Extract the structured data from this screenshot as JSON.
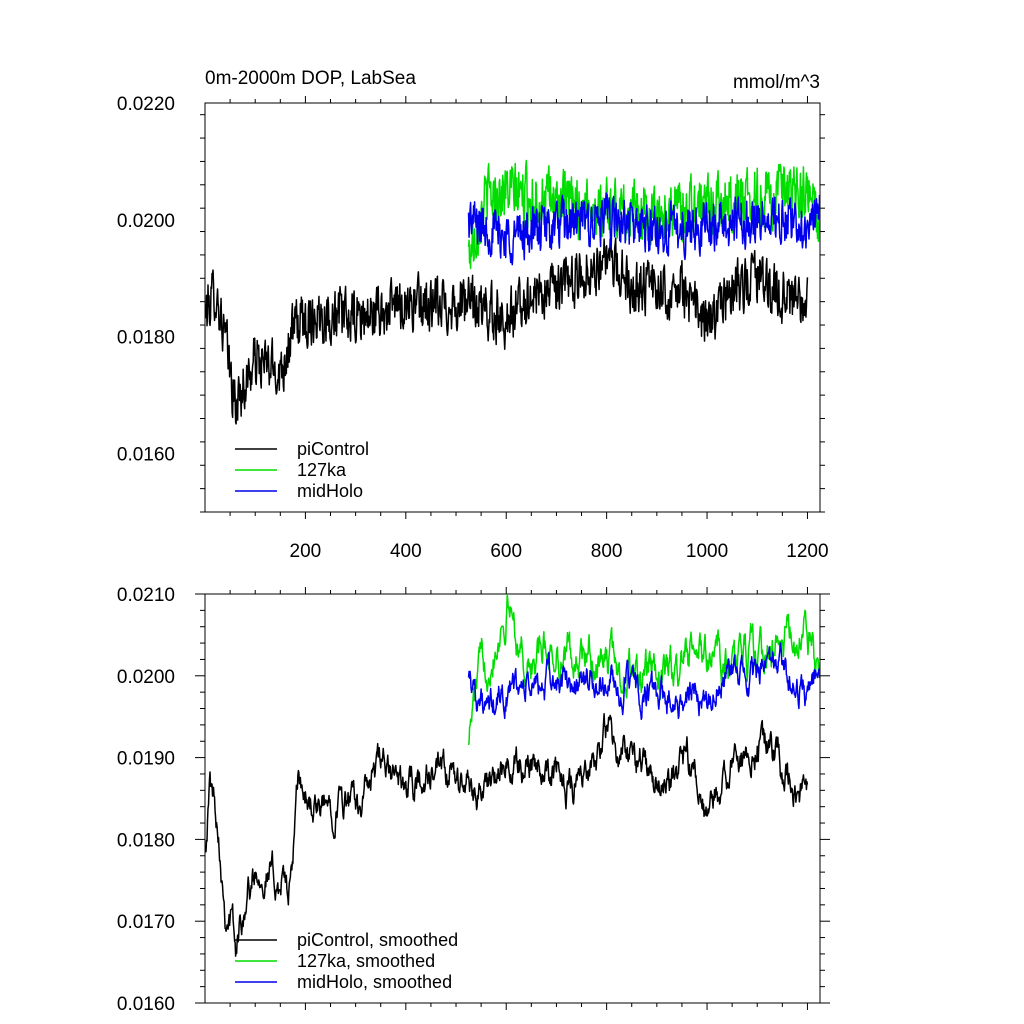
{
  "chart_data": [
    {
      "type": "line",
      "title": "0m-2000m DOP, LabSea",
      "units": "mmol/m^3",
      "xlim": [
        0,
        1225
      ],
      "ylim": [
        0.015,
        0.022
      ],
      "x_ticks": [
        200,
        400,
        600,
        800,
        1000,
        1200
      ],
      "x_tick_labels": [
        "200",
        "400",
        "600",
        "800",
        "1000",
        "1200"
      ],
      "y_ticks": [
        0.016,
        0.018,
        0.02,
        0.022
      ],
      "y_tick_labels": [
        "0.0160",
        "0.0180",
        "0.0200",
        "0.0220"
      ],
      "legend_position": "bottom-left",
      "series": [
        {
          "name": "piControl",
          "color": "#000000",
          "x_start": 1,
          "x_end": 1200,
          "noise": 0.00055,
          "anchors": [
            [
              1,
              0.0184
            ],
            [
              20,
              0.0188
            ],
            [
              40,
              0.018
            ],
            [
              60,
              0.0168
            ],
            [
              80,
              0.0172
            ],
            [
              100,
              0.0176
            ],
            [
              150,
              0.0174
            ],
            [
              180,
              0.0182
            ],
            [
              230,
              0.0184
            ],
            [
              300,
              0.0183
            ],
            [
              350,
              0.0184
            ],
            [
              400,
              0.0186
            ],
            [
              450,
              0.0185
            ],
            [
              520,
              0.0186
            ],
            [
              600,
              0.0183
            ],
            [
              650,
              0.0187
            ],
            [
              700,
              0.0188
            ],
            [
              800,
              0.0193
            ],
            [
              850,
              0.0189
            ],
            [
              900,
              0.0188
            ],
            [
              950,
              0.0188
            ],
            [
              1000,
              0.0182
            ],
            [
              1050,
              0.0188
            ],
            [
              1100,
              0.019
            ],
            [
              1150,
              0.0187
            ],
            [
              1200,
              0.0185
            ]
          ]
        },
        {
          "name": "127ka",
          "color": "#00dd00",
          "x_start": 525,
          "x_end": 1225,
          "noise": 0.0006,
          "anchors": [
            [
              525,
              0.0194
            ],
            [
              560,
              0.0204
            ],
            [
              600,
              0.0205
            ],
            [
              700,
              0.0203
            ],
            [
              800,
              0.0202
            ],
            [
              900,
              0.0201
            ],
            [
              1000,
              0.0203
            ],
            [
              1100,
              0.0204
            ],
            [
              1200,
              0.0204
            ],
            [
              1225,
              0.02
            ]
          ]
        },
        {
          "name": "midHolo",
          "color": "#0000ee",
          "x_start": 525,
          "x_end": 1225,
          "noise": 0.0005,
          "anchors": [
            [
              525,
              0.02
            ],
            [
              600,
              0.0197
            ],
            [
              700,
              0.0199
            ],
            [
              800,
              0.02
            ],
            [
              900,
              0.0198
            ],
            [
              1000,
              0.0199
            ],
            [
              1100,
              0.02
            ],
            [
              1200,
              0.0199
            ],
            [
              1225,
              0.0201
            ]
          ]
        }
      ]
    },
    {
      "type": "line",
      "title": "",
      "xlim": [
        0,
        1225
      ],
      "ylim": [
        0.016,
        0.021
      ],
      "x_ticks": [
        200,
        400,
        600,
        800,
        1000,
        1200
      ],
      "y_ticks": [
        0.016,
        0.017,
        0.018,
        0.019,
        0.02,
        0.021
      ],
      "y_tick_labels": [
        "0.0160",
        "0.0170",
        "0.0180",
        "0.0190",
        "0.0200",
        "0.0210"
      ],
      "legend_position": "bottom-left",
      "series": [
        {
          "name": "piControl, smoothed",
          "color": "#000000",
          "x_start": 1,
          "x_end": 1200,
          "noise": 0.0003,
          "anchors": [
            [
              1,
              0.018
            ],
            [
              10,
              0.0187
            ],
            [
              25,
              0.0183
            ],
            [
              40,
              0.0172
            ],
            [
              55,
              0.017
            ],
            [
              62,
              0.0166
            ],
            [
              80,
              0.0173
            ],
            [
              110,
              0.0177
            ],
            [
              140,
              0.0175
            ],
            [
              170,
              0.0174
            ],
            [
              185,
              0.0186
            ],
            [
              230,
              0.0183
            ],
            [
              260,
              0.0185
            ],
            [
              300,
              0.0184
            ],
            [
              350,
              0.0189
            ],
            [
              400,
              0.0186
            ],
            [
              450,
              0.0188
            ],
            [
              500,
              0.0187
            ],
            [
              560,
              0.0186
            ],
            [
              620,
              0.0189
            ],
            [
              660,
              0.019
            ],
            [
              720,
              0.0187
            ],
            [
              770,
              0.0188
            ],
            [
              800,
              0.0193
            ],
            [
              840,
              0.019
            ],
            [
              880,
              0.0189
            ],
            [
              920,
              0.0186
            ],
            [
              960,
              0.0189
            ],
            [
              1000,
              0.0182
            ],
            [
              1040,
              0.0188
            ],
            [
              1080,
              0.0191
            ],
            [
              1110,
              0.0193
            ],
            [
              1150,
              0.0188
            ],
            [
              1200,
              0.0185
            ]
          ]
        },
        {
          "name": "127ka, smoothed",
          "color": "#00dd00",
          "x_start": 525,
          "x_end": 1225,
          "noise": 0.00035,
          "anchors": [
            [
              525,
              0.0193
            ],
            [
              545,
              0.02
            ],
            [
              575,
              0.0204
            ],
            [
              605,
              0.0209
            ],
            [
              640,
              0.0201
            ],
            [
              680,
              0.0203
            ],
            [
              750,
              0.0202
            ],
            [
              800,
              0.0202
            ],
            [
              850,
              0.02
            ],
            [
              900,
              0.02
            ],
            [
              950,
              0.0201
            ],
            [
              1000,
              0.0203
            ],
            [
              1050,
              0.0201
            ],
            [
              1100,
              0.0203
            ],
            [
              1150,
              0.0204
            ],
            [
              1200,
              0.0205
            ],
            [
              1225,
              0.02
            ]
          ]
        },
        {
          "name": "midHolo, smoothed",
          "color": "#0000ee",
          "x_start": 525,
          "x_end": 1225,
          "noise": 0.0003,
          "anchors": [
            [
              525,
              0.0201
            ],
            [
              560,
              0.0195
            ],
            [
              600,
              0.0198
            ],
            [
              700,
              0.0199
            ],
            [
              800,
              0.0199
            ],
            [
              850,
              0.0198
            ],
            [
              900,
              0.0197
            ],
            [
              1000,
              0.0198
            ],
            [
              1050,
              0.02
            ],
            [
              1100,
              0.02
            ],
            [
              1150,
              0.0201
            ],
            [
              1200,
              0.0197
            ],
            [
              1225,
              0.0201
            ]
          ]
        }
      ]
    }
  ]
}
